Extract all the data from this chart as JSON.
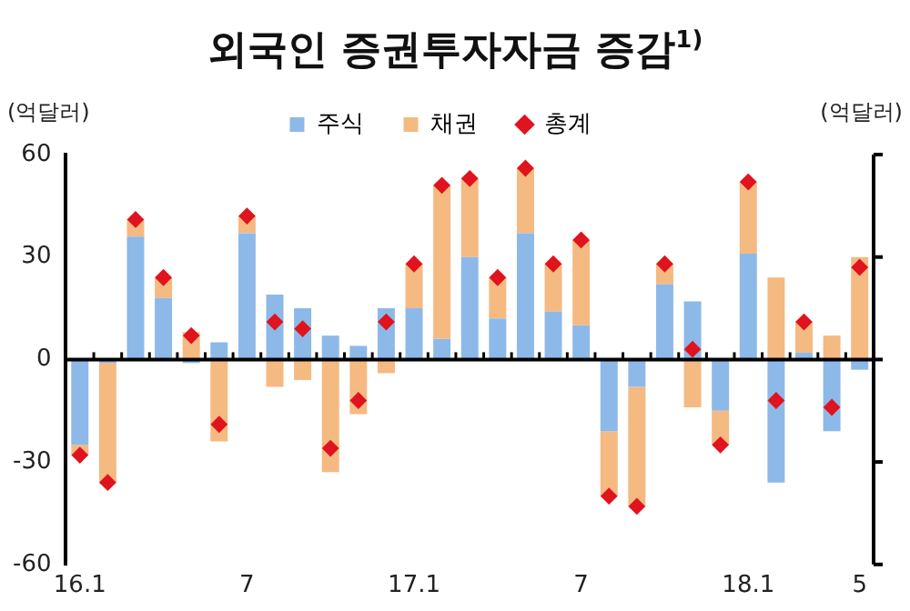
{
  "chart_data": {
    "type": "bar",
    "title": "외국인 증권투자자금 증감$^{1)}$",
    "stacked": true,
    "categories": [
      "16.1",
      null,
      null,
      null,
      null,
      null,
      "7",
      null,
      null,
      null,
      null,
      null,
      "17.1",
      null,
      null,
      null,
      null,
      null,
      "7",
      null,
      null,
      null,
      null,
      null,
      "18.1",
      null,
      null,
      null,
      "5"
    ],
    "series": [
      {
        "name": "주식",
        "color": "#8db9e8",
        "values": [
          -25,
          -1,
          36,
          18,
          -1,
          5,
          37,
          19,
          15,
          7,
          4,
          15,
          15,
          6,
          30,
          12,
          37,
          14,
          10,
          -21,
          -8,
          22,
          17,
          -15,
          31,
          -36,
          2,
          -21,
          -3
        ]
      },
      {
        "name": "채권",
        "color": "#f5b982",
        "values": [
          -3,
          -35,
          5,
          6,
          8,
          -24,
          5,
          -8,
          -6,
          -33,
          -16,
          -4,
          13,
          45,
          23,
          12,
          19,
          14,
          25,
          -19,
          -35,
          6,
          -14,
          -10,
          21,
          24,
          9,
          7,
          30
        ]
      },
      {
        "name": "총계",
        "type": "scatter",
        "marker": "diamond",
        "color": "#e0141e",
        "values": [
          -28,
          -36,
          41,
          24,
          7,
          -19,
          42,
          11,
          9,
          -26,
          -12,
          11,
          28,
          51,
          53,
          24,
          56,
          28,
          35,
          -40,
          -43,
          28,
          3,
          -25,
          52,
          -12,
          11,
          -14,
          27
        ]
      }
    ],
    "ylim": [
      -60,
      60
    ],
    "yticks": [
      -60,
      -30,
      0,
      30,
      60
    ],
    "tick_labels": "xy",
    "legend": "top",
    "annotations": [
      "(억달러)",
      "(억달러)"
    ]
  }
}
